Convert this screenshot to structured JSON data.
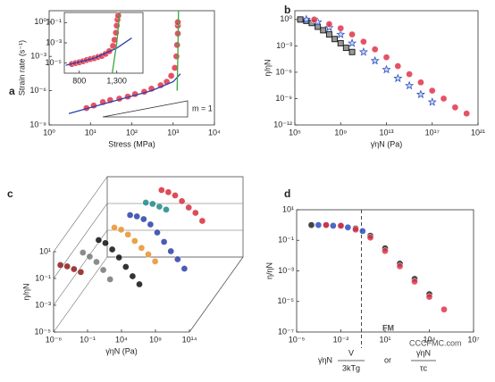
{
  "chart_data": [
    {
      "type": "scatter",
      "panel": "a",
      "x_label": "Stress (MPa)",
      "y_label": "Strain rate (s⁻¹)",
      "annotation": "m = 1",
      "log_x": true,
      "log_y": true,
      "xlim": [
        1,
        10000
      ],
      "ylim": [
        1e-09,
        10
      ],
      "xticks": [
        {
          "value": 1,
          "label": "10⁰"
        },
        {
          "value": 10,
          "label": "10¹"
        },
        {
          "value": 100,
          "label": "10²"
        },
        {
          "value": 1000,
          "label": "10³"
        },
        {
          "value": 10000,
          "label": "10⁴"
        }
      ],
      "yticks": [
        {
          "value": 1e-09,
          "label": "10⁻⁹"
        },
        {
          "value": 1e-06,
          "label": "10⁻⁶"
        },
        {
          "value": 0.001,
          "label": "10⁻³"
        },
        {
          "value": 1,
          "label": "10⁰"
        }
      ],
      "series": [
        {
          "color": "#e0344a",
          "marker": "circle",
          "x": [
            8,
            12,
            20,
            30,
            50,
            80,
            120,
            200,
            300,
            500,
            700,
            900,
            1100,
            1200,
            1250,
            1300,
            1300,
            1300
          ],
          "values": [
            3e-08,
            5e-08,
            1e-07,
            1.5e-07,
            2e-07,
            3e-07,
            5e-07,
            8e-07,
            1.5e-06,
            3e-06,
            6e-06,
            2e-05,
            0.0001,
            0.001,
            0.01,
            0.1,
            0.5,
            1
          ]
        },
        {
          "color": "#2b3fa8",
          "marker": "line",
          "x": [
            3,
            30,
            300,
            1000,
            1500
          ],
          "values": [
            1e-08,
            1e-07,
            1e-06,
            6e-06,
            3e-05
          ]
        },
        {
          "color": "#3aa83a",
          "marker": "line",
          "x": [
            1250,
            1300,
            1350
          ],
          "values": [
            1e-06,
            0.001,
            10
          ]
        }
      ]
    },
    {
      "type": "scatter",
      "panel": "",
      "inset": true,
      "log_x": false,
      "log_y": true,
      "xlim": [
        600,
        1650
      ],
      "ylim": [
        1e-06,
        1
      ],
      "xticks": [
        800,
        {
          "value": 1300,
          "label": "1,300"
        }
      ],
      "yticks": [
        {
          "value": 0.1,
          "label": "10⁻¹"
        },
        {
          "value": 0.001,
          "label": "10⁻³"
        },
        {
          "value": 1e-05,
          "label": "10⁻⁵"
        }
      ],
      "series": [
        {
          "color": "#e0344a",
          "marker": "circle",
          "x": [
            700,
            750,
            800,
            850,
            900,
            950,
            1000,
            1050,
            1100,
            1150,
            1200,
            1250,
            1270,
            1290,
            1300,
            1310,
            1320
          ],
          "values": [
            8e-06,
            1e-05,
            1.2e-05,
            1.5e-05,
            2e-05,
            2.5e-05,
            3e-05,
            4e-05,
            5e-05,
            8e-05,
            0.00015,
            0.0005,
            0.002,
            0.01,
            0.05,
            0.2,
            0.5
          ]
        },
        {
          "color": "#2b3fa8",
          "marker": "line",
          "x": [
            620,
            1000,
            1300,
            1500
          ],
          "values": [
            6e-06,
            3e-05,
            0.0003,
            0.003
          ]
        },
        {
          "color": "#3aa83a",
          "marker": "line",
          "x": [
            1240,
            1300,
            1340
          ],
          "values": [
            1e-06,
            0.001,
            1
          ]
        }
      ]
    },
    {
      "type": "scatter",
      "panel": "b",
      "x_label": "γ̇ηN (Pa)",
      "y_label": "η/ηN",
      "log_x": true,
      "log_y": true,
      "xlim": [
        100000,
        1e+21
      ],
      "ylim": [
        1e-12,
        10
      ],
      "xticks": [
        {
          "value": 100000,
          "label": "10⁵"
        },
        {
          "value": 1000000000.0,
          "label": "10⁹"
        },
        {
          "value": 10000000000000.0,
          "label": "10¹³"
        },
        {
          "value": 1e+17,
          "label": "10¹⁷"
        },
        {
          "value": 1e+21,
          "label": "10²¹"
        }
      ],
      "yticks": [
        {
          "value": 1e-12,
          "label": "10⁻¹²"
        },
        {
          "value": 1e-09,
          "label": "10⁻⁹"
        },
        {
          "value": 1e-06,
          "label": "10⁻⁶"
        },
        {
          "value": 0.001,
          "label": "10⁻³"
        },
        {
          "value": 1,
          "label": "10⁰"
        }
      ],
      "series": [
        {
          "color": "#222222",
          "marker": "square",
          "x": [
            300000,
            1000000,
            3000000,
            10000000,
            30000000,
            100000000,
            300000000,
            1000000000.0,
            3000000000.0,
            10000000000.0
          ],
          "values": [
            1,
            0.7,
            0.4,
            0.15,
            0.06,
            0.02,
            0.006,
            0.002,
            0.0006,
            0.0002
          ]
        },
        {
          "color": "#2b4fc0",
          "marker": "star",
          "x": [
            1000000,
            10000000,
            100000000,
            1000000000.0,
            10000000000.0,
            100000000000.0,
            1000000000000.0,
            10000000000000.0,
            100000000000000.0,
            1000000000000000.0,
            1e+16,
            1e+17
          ],
          "values": [
            1,
            0.5,
            0.12,
            0.02,
            0.002,
            0.0002,
            2e-05,
            2e-06,
            2e-07,
            3e-08,
            3e-09,
            4e-10
          ]
        },
        {
          "color": "#e0344a",
          "marker": "circle",
          "x": [
            5000000,
            100000000,
            1000000000.0,
            10000000000.0,
            100000000000.0,
            1000000000000.0,
            10000000000000.0,
            100000000000000.0,
            1000000000000000.0,
            1e+16,
            1e+17,
            1e+18,
            1e+19,
            1e+20
          ],
          "values": [
            1,
            0.3,
            0.1,
            0.02,
            0.003,
            0.0004,
            5e-05,
            5e-06,
            6e-07,
            7e-08,
            8e-09,
            1e-09,
            1e-10,
            2e-11
          ]
        }
      ]
    },
    {
      "type": "scatter3d",
      "panel": "c",
      "x_label": "γ̇ηN (Pa)",
      "y_label": "η/ηN",
      "log_x": true,
      "log_y": true,
      "xlim": [
        1e-06,
        100000000000000.0
      ],
      "ylim": [
        1e-05,
        10
      ],
      "xticks": [
        {
          "value": 1e-06,
          "label": "10⁻⁶"
        },
        {
          "value": 0.1,
          "label": "10⁻¹"
        },
        {
          "value": 10000,
          "label": "10⁴"
        },
        {
          "value": 1000000000.0,
          "label": "10⁹"
        },
        {
          "value": 100000000000000.0,
          "label": "10¹⁴"
        }
      ],
      "yticks": [
        {
          "value": 10,
          "label": "10¹"
        },
        {
          "value": 0.1,
          "label": "10⁻¹"
        },
        {
          "value": 0.001,
          "label": "10⁻³"
        },
        {
          "value": 1e-05,
          "label": "10⁻⁵"
        }
      ],
      "series": [
        {
          "color": "#8b1a1a",
          "marker": "circle",
          "x": [
            1e-05,
            0.0001,
            0.001,
            0.01
          ],
          "values": [
            1,
            0.8,
            0.5,
            0.3
          ]
        },
        {
          "color": "#777777",
          "marker": "circle",
          "x": [
            0.001,
            0.01,
            0.1,
            1,
            10
          ],
          "values": [
            1,
            0.5,
            0.2,
            0.05,
            0.01
          ]
        },
        {
          "color": "#111111",
          "marker": "circle",
          "x": [
            0.01,
            0.1,
            1,
            10,
            100,
            1000,
            10000
          ],
          "values": [
            1,
            0.6,
            0.2,
            0.05,
            0.01,
            0.002,
            0.0005
          ]
        },
        {
          "color": "#e8922a",
          "marker": "circle",
          "x": [
            0.1,
            1,
            10,
            100,
            1000,
            10000,
            100000
          ],
          "values": [
            1,
            0.7,
            0.3,
            0.1,
            0.03,
            0.01,
            0.003
          ]
        },
        {
          "color": "#2b3fa8",
          "marker": "circle",
          "x": [
            1,
            10,
            100,
            1000,
            10000,
            100000,
            1000000,
            10000000,
            100000000
          ],
          "values": [
            1,
            0.8,
            0.5,
            0.2,
            0.05,
            0.01,
            0.002,
            0.0005,
            0.0001
          ]
        },
        {
          "color": "#1f8a86",
          "marker": "circle",
          "x": [
            10,
            100,
            1000,
            10000
          ],
          "values": [
            1,
            0.8,
            0.5,
            0.3
          ]
        },
        {
          "color": "#d92b3a",
          "marker": "circle",
          "x": [
            100,
            1000,
            10000,
            100000,
            1000000,
            10000000,
            100000000
          ],
          "values": [
            1,
            0.7,
            0.4,
            0.15,
            0.05,
            0.02,
            0.005
          ]
        }
      ]
    },
    {
      "type": "scatter",
      "panel": "d",
      "y_label": "η/ηN",
      "x_label": {
        "prefix": "γ̇ηN",
        "num1": "V",
        "den1": "3kTg",
        "or": "or",
        "num2": "γ̇ηN",
        "den2": "τc"
      },
      "watermark": {
        "logo": "FM",
        "site": "CCCFMC.com"
      },
      "log_x": true,
      "log_y": true,
      "xlim": [
        1e-05,
        10000000
      ],
      "ylim": [
        1e-07,
        10
      ],
      "vline": 0.25,
      "xticks": [
        {
          "value": 1e-05,
          "label": "10⁻⁵"
        },
        {
          "value": 0.01,
          "label": "10⁻²"
        },
        {
          "value": 10,
          "label": "10¹"
        },
        {
          "value": 10000,
          "label": "10⁴"
        },
        {
          "value": 10000000,
          "label": "10⁷"
        }
      ],
      "yticks": [
        {
          "value": 10,
          "label": "10¹"
        },
        {
          "value": 0.1,
          "label": "10⁻¹"
        },
        {
          "value": 0.001,
          "label": "10⁻³"
        },
        {
          "value": 1e-05,
          "label": "10⁻⁵"
        },
        {
          "value": 1e-07,
          "label": "10⁻⁷"
        }
      ],
      "series": [
        {
          "color": "#222222",
          "marker": "circle",
          "x": [
            0.0001,
            0.001,
            0.01,
            0.1,
            1,
            10,
            100,
            1000,
            10000
          ],
          "values": [
            1,
            1,
            0.9,
            0.6,
            0.2,
            0.03,
            0.003,
            0.0003,
            3e-05
          ]
        },
        {
          "color": "#2b4fc0",
          "marker": "circle",
          "x": [
            0.0003,
            0.003,
            0.03,
            0.3
          ],
          "values": [
            1,
            0.9,
            0.7,
            0.4
          ]
        },
        {
          "color": "#e0344a",
          "marker": "circle",
          "x": [
            0.001,
            0.01,
            0.1,
            1,
            10,
            100,
            1000,
            10000,
            100000
          ],
          "values": [
            1,
            0.9,
            0.5,
            0.15,
            0.02,
            0.002,
            0.0002,
            2e-05,
            3e-06
          ]
        }
      ]
    }
  ]
}
